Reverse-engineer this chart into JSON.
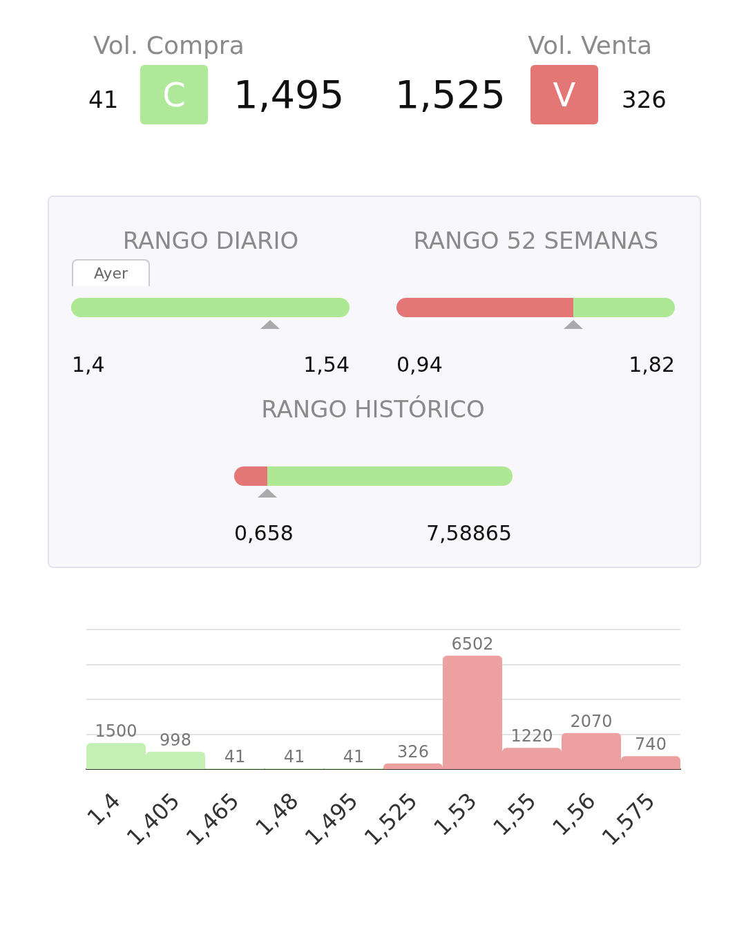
{
  "chart_data": [
    {
      "type": "other",
      "annotations": [
        "Vol. Compra",
        "41",
        "C",
        "1,495",
        "1,525",
        "V",
        "326",
        "Vol. Venta"
      ],
      "colors": [
        "#b0e89a",
        "#e57676"
      ]
    },
    {
      "type": "other",
      "annotations": [
        "RANGO DIARIO",
        "Ayer",
        "1,4",
        "1,54",
        "RANGO 52 SEMANAS",
        "0,94",
        "1,82",
        "RANGO HISTÓRICO",
        "0,658",
        "7,58865"
      ],
      "colors": [
        "#e57676",
        "#aee895"
      ]
    },
    {
      "type": "bar",
      "categories": [
        "1,4",
        "1,405",
        "1,465",
        "1,48",
        "1,495",
        "1,525",
        "1,53",
        "1,55",
        "1,56",
        "1,575"
      ],
      "values": [
        1500,
        998,
        41,
        41,
        41,
        326,
        6502,
        1220,
        2070,
        740
      ],
      "colors": [
        "#c5f0b5",
        "#c5f0b5",
        "#c5f0b5",
        "#c5f0b5",
        "#c5f0b5",
        "#eca0a0",
        "#eca0a0",
        "#eca0a0",
        "#eca0a0",
        "#eca0a0"
      ],
      "grid": "y",
      "tick_labels": "x",
      "data_labels": true
    }
  ]
}
